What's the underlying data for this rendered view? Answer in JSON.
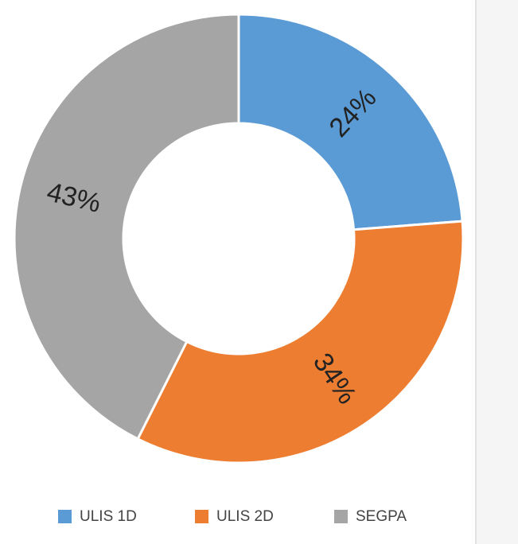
{
  "chart_data": {
    "type": "donut",
    "categories": [
      "ULIS 1D",
      "ULIS 2D",
      "SEGPA"
    ],
    "values": [
      24,
      34,
      43
    ],
    "value_labels": [
      "24%",
      "34%",
      "43%"
    ],
    "colors": [
      "#5b9bd5",
      "#ed7d31",
      "#a5a5a5"
    ],
    "legend": "bottom"
  }
}
